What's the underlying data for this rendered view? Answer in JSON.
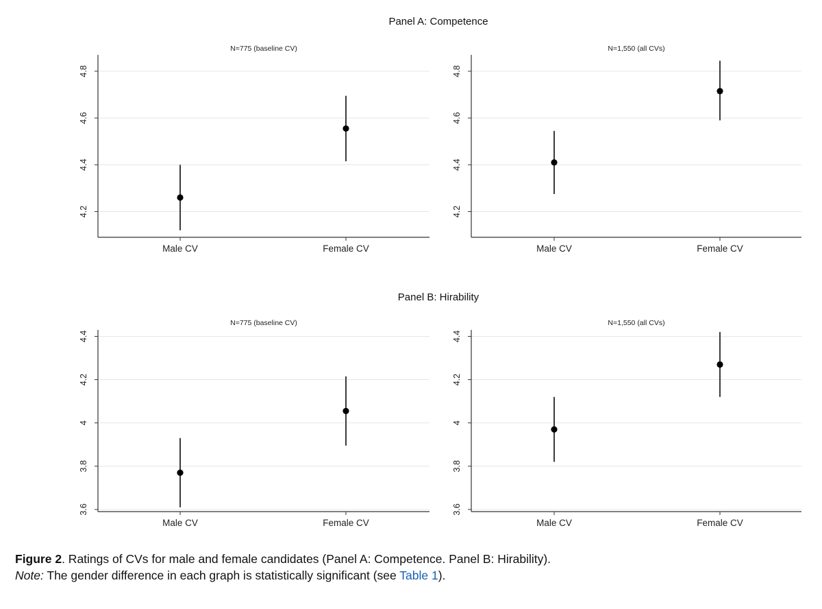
{
  "chart_data": [
    {
      "type": "scatter",
      "panel_title": "Panel A: Competence",
      "title": "N=775 (baseline CV)",
      "categories": [
        "Male CV",
        "Female CV"
      ],
      "yticks": [
        4.2,
        4.4,
        4.6,
        4.8
      ],
      "ytick_labels": [
        "4.2",
        "4.4",
        "4.6",
        "4.8"
      ],
      "ylim": [
        4.09,
        4.87
      ],
      "points": [
        {
          "category": "Male CV",
          "y": 4.26,
          "ci_low": 4.12,
          "ci_high": 4.4
        },
        {
          "category": "Female CV",
          "y": 4.555,
          "ci_low": 4.415,
          "ci_high": 4.695
        }
      ],
      "grid": true,
      "error_bars": true
    },
    {
      "type": "scatter",
      "panel_title": "Panel A: Competence",
      "title": "N=1,550 (all CVs)",
      "categories": [
        "Male CV",
        "Female CV"
      ],
      "yticks": [
        4.2,
        4.4,
        4.6,
        4.8
      ],
      "ytick_labels": [
        "4.2",
        "4.4",
        "4.6",
        "4.8"
      ],
      "ylim": [
        4.09,
        4.87
      ],
      "points": [
        {
          "category": "Male CV",
          "y": 4.41,
          "ci_low": 4.275,
          "ci_high": 4.545
        },
        {
          "category": "Female CV",
          "y": 4.715,
          "ci_low": 4.59,
          "ci_high": 4.845
        }
      ],
      "grid": true,
      "error_bars": true
    },
    {
      "type": "scatter",
      "panel_title": "Panel B: Hirability",
      "title": "N=775 (baseline CV)",
      "categories": [
        "Male CV",
        "Female CV"
      ],
      "yticks": [
        3.6,
        3.8,
        4.0,
        4.2,
        4.4
      ],
      "ytick_labels": [
        "3.6",
        "3.8",
        "4",
        "4.2",
        "4.4"
      ],
      "ylim": [
        3.59,
        4.43
      ],
      "points": [
        {
          "category": "Male CV",
          "y": 3.77,
          "ci_low": 3.61,
          "ci_high": 3.93
        },
        {
          "category": "Female CV",
          "y": 4.055,
          "ci_low": 3.895,
          "ci_high": 4.215
        }
      ],
      "grid": true,
      "error_bars": true
    },
    {
      "type": "scatter",
      "panel_title": "Panel B: Hirability",
      "title": "N=1,550 (all CVs)",
      "categories": [
        "Male CV",
        "Female CV"
      ],
      "yticks": [
        3.6,
        3.8,
        4.0,
        4.2,
        4.4
      ],
      "ytick_labels": [
        "3.6",
        "3.8",
        "4",
        "4.2",
        "4.4"
      ],
      "ylim": [
        3.59,
        4.43
      ],
      "points": [
        {
          "category": "Male CV",
          "y": 3.97,
          "ci_low": 3.82,
          "ci_high": 4.12
        },
        {
          "category": "Female CV",
          "y": 4.27,
          "ci_low": 4.12,
          "ci_high": 4.42
        }
      ],
      "grid": true,
      "error_bars": true
    }
  ],
  "panels": {
    "a_title": "Panel A: Competence",
    "b_title": "Panel B: Hirability"
  },
  "caption": {
    "figure_label": "Figure 2",
    "figure_text": ". Ratings of CVs for male and female candidates (Panel A: Competence. Panel B: Hirability).",
    "note_label": "Note:",
    "note_text": " The gender difference in each graph is statistically significant (see ",
    "link_text": "Table 1",
    "note_end": ")."
  }
}
